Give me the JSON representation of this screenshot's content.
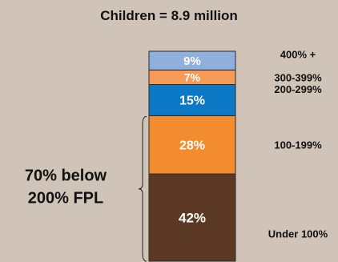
{
  "chart_data": {
    "type": "bar",
    "stacked": true,
    "title": "Children = 8.9 million",
    "categories": [
      "Under 100%",
      "100-199%",
      "200-299%",
      "300-399%",
      "400% +"
    ],
    "series": [
      {
        "values": [
          42,
          28,
          15,
          7,
          9
        ]
      }
    ],
    "data_labels": [
      "42%",
      "28%",
      "15%",
      "7%",
      "9%"
    ],
    "colors": [
      "#5c3924",
      "#f38c2e",
      "#0b79c5",
      "#f69a55",
      "#8fb0dc"
    ],
    "annotation": {
      "line1": "70% below",
      "line2": "200% FPL"
    },
    "ylim": [
      0,
      101
    ]
  }
}
